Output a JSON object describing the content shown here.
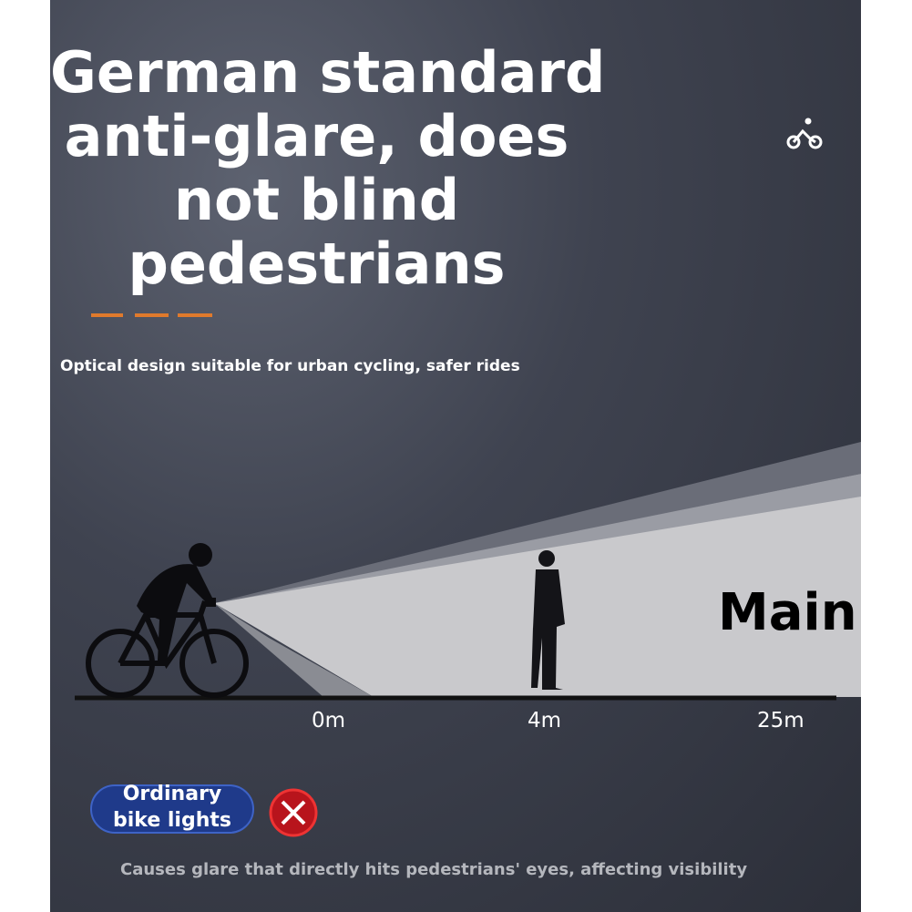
{
  "header": {
    "title_lines": [
      "German standard",
      "anti-glare, does",
      "not blind",
      "pedestrians"
    ],
    "subtitle": "Optical design suitable for urban cycling, safer rides"
  },
  "scene": {
    "label": "Main",
    "distances": [
      "0m",
      "4m",
      "25m"
    ]
  },
  "comparison": {
    "badge_lines": [
      "Ordinary",
      "bike lights"
    ],
    "caption": "Causes glare that directly hits pedestrians' eyes, affecting visibility"
  }
}
